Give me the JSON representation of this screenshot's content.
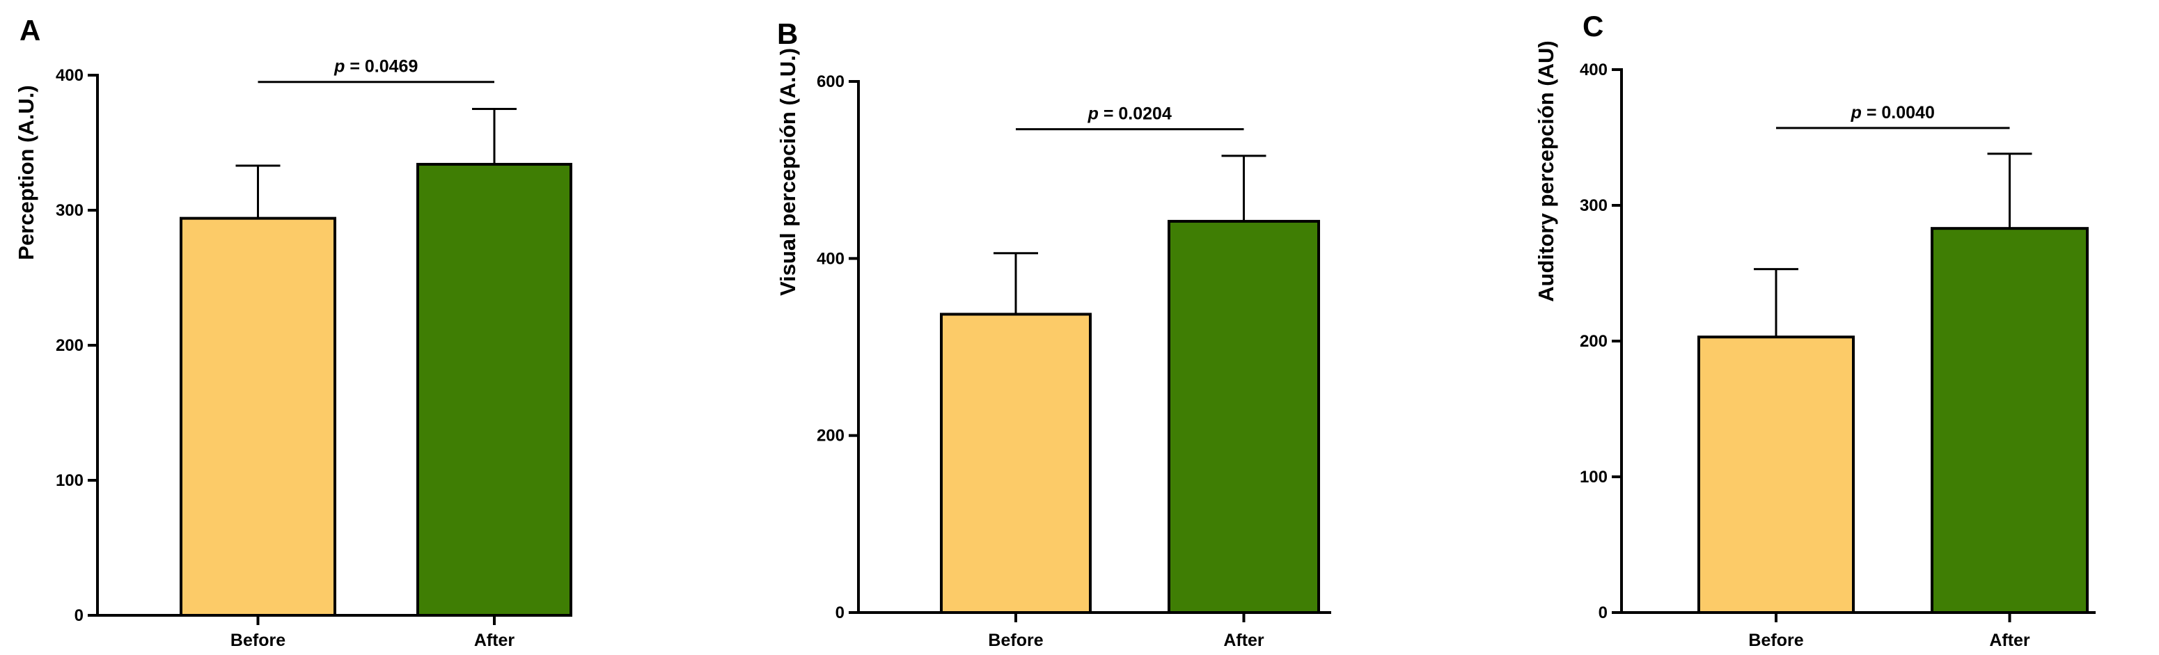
{
  "figure": {
    "colors": {
      "before": "#FCCB68",
      "after": "#3F7E04",
      "axis": "#000000"
    }
  },
  "chart_data": [
    {
      "panel": "A",
      "type": "bar",
      "categories": [
        "Before",
        "After"
      ],
      "values": [
        294,
        334
      ],
      "errors": [
        39,
        41
      ],
      "ylabel": "Perception (A.U.)",
      "xlabel": "",
      "ylim": [
        0,
        400
      ],
      "yticks": [
        0,
        100,
        200,
        300,
        400
      ],
      "significance": {
        "p_symbol": "p",
        "p_value": "= 0.0469",
        "bracket_value": 395
      }
    },
    {
      "panel": "B",
      "type": "bar",
      "categories": [
        "Before",
        "After"
      ],
      "values": [
        337,
        442
      ],
      "errors": [
        69,
        74
      ],
      "ylabel": "Visual percepción  (A.U.)",
      "xlabel": "",
      "ylim": [
        0,
        600
      ],
      "yticks": [
        0,
        200,
        400,
        600
      ],
      "significance": {
        "p_symbol": "p",
        "p_value": "= 0.0204",
        "bracket_value": 546
      }
    },
    {
      "panel": "C",
      "type": "bar",
      "categories": [
        "Before",
        "After"
      ],
      "values": [
        203,
        283
      ],
      "errors": [
        50,
        55
      ],
      "ylabel": "Auditory percepción (AU)",
      "xlabel": "",
      "ylim": [
        0,
        400
      ],
      "yticks": [
        0,
        100,
        200,
        300,
        400
      ],
      "significance": {
        "p_symbol": "p",
        "p_value": "= 0.0040",
        "bracket_value": 357
      }
    }
  ]
}
